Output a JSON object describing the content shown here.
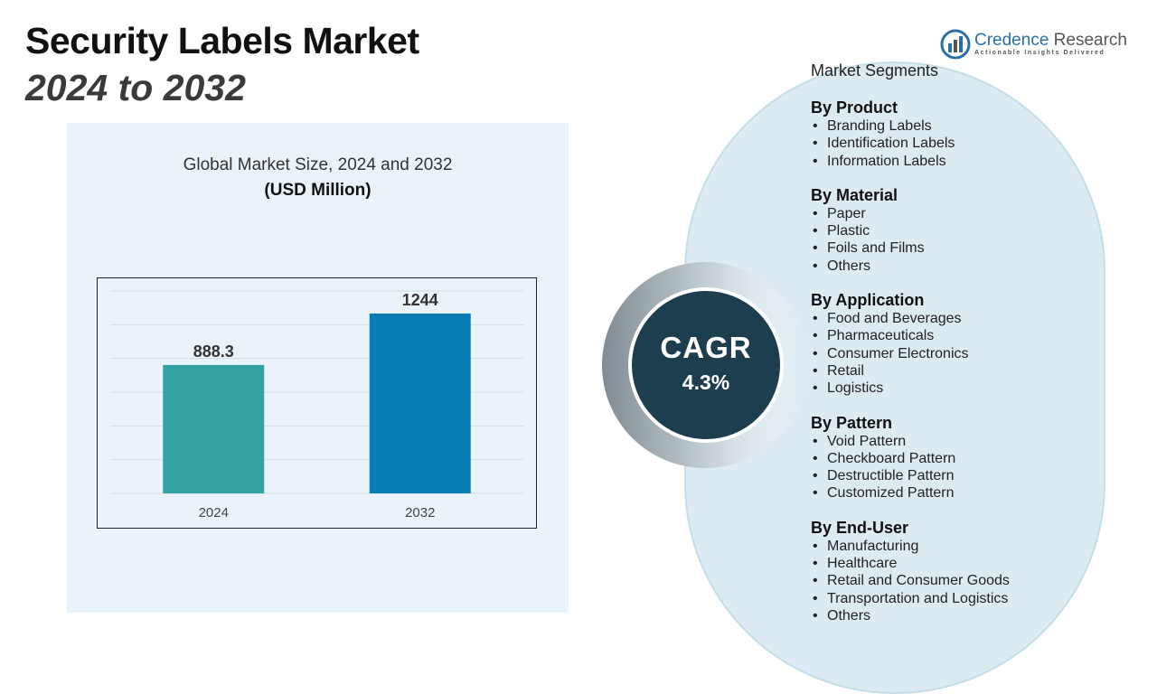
{
  "header": {
    "title": "Security Labels Market",
    "subtitle": "2024 to 2032"
  },
  "logo": {
    "brand_primary": "Credence",
    "brand_secondary": "Research",
    "tagline": "Actionable Insights Delivered"
  },
  "chart_data": {
    "type": "bar",
    "title": "Global Market Size, 2024 and 2032",
    "unit": "(USD Million)",
    "categories": [
      "2024",
      "2032"
    ],
    "values": [
      888.3,
      1244
    ],
    "data_labels": [
      "888.3",
      "1244"
    ],
    "colors": [
      "#35a3a3",
      "#0a7db4"
    ],
    "ylim": [
      0,
      1400
    ],
    "grid": true,
    "xlabel": "",
    "ylabel": ""
  },
  "cagr": {
    "label": "CAGR",
    "value": "4.3%"
  },
  "segments": {
    "heading": "Market Segments",
    "groups": [
      {
        "title": "By Product",
        "items": [
          "Branding Labels",
          "Identification Labels",
          "Information Labels"
        ]
      },
      {
        "title": "By Material",
        "items": [
          "Paper",
          "Plastic",
          "Foils and Films",
          "Others"
        ]
      },
      {
        "title": "By Application",
        "items": [
          "Food and Beverages",
          "Pharmaceuticals",
          "Consumer Electronics",
          "Retail",
          "Logistics"
        ]
      },
      {
        "title": "By Pattern",
        "items": [
          "Void Pattern",
          "Checkboard Pattern",
          "Destructible Pattern",
          "Customized Pattern"
        ]
      },
      {
        "title": "By End-User",
        "items": [
          "Manufacturing",
          "Healthcare",
          "Retail and Consumer Goods",
          "Transportation and Logistics",
          "Others"
        ]
      }
    ]
  },
  "colors": {
    "panel_bg": "#eaf3fa",
    "pill_bg": "#dceaf2",
    "cagr_bg": "#1c3e4f",
    "brand_blue": "#2a6fa8"
  }
}
